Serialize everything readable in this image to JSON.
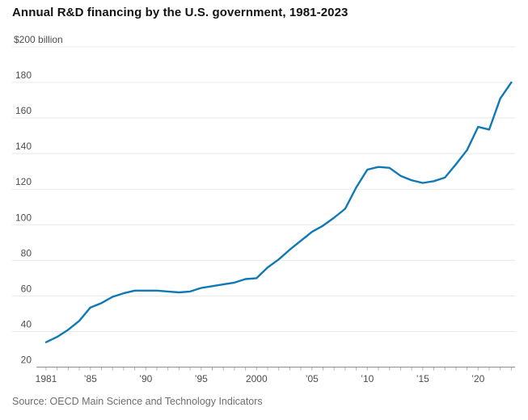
{
  "header": {
    "title": "Annual R&D financing by the U.S. government, 1981-2023"
  },
  "footer": {
    "source": "Source: OECD Main Science and Technology Indicators"
  },
  "colors": {
    "line": "#0f79b5",
    "gridline": "#e8e8e8",
    "axis_line": "#8f8f8f",
    "tick": "#b0b0b0",
    "title_text": "#141414",
    "axis_text": "#4d4d4d",
    "source_text": "#6e6e6e",
    "background": "#ffffff"
  },
  "chart_data": {
    "type": "line",
    "title": "Annual R&D financing by the U.S. government, 1981-2023",
    "unit_label": "$200 billion",
    "xlabel": "",
    "ylabel": "$ billion",
    "ylim": [
      20,
      200
    ],
    "ytick_step": 20,
    "grid": "horizontal",
    "legend": "none",
    "x": [
      1981,
      1982,
      1983,
      1984,
      1985,
      1986,
      1987,
      1988,
      1989,
      1990,
      1991,
      1992,
      1993,
      1994,
      1995,
      1996,
      1997,
      1998,
      1999,
      2000,
      2001,
      2002,
      2003,
      2004,
      2005,
      2006,
      2007,
      2008,
      2009,
      2010,
      2011,
      2012,
      2013,
      2014,
      2015,
      2016,
      2017,
      2018,
      2019,
      2020,
      2021,
      2022,
      2023
    ],
    "values": [
      34,
      37,
      41,
      46,
      53.5,
      56,
      59.5,
      61.5,
      63,
      63,
      63,
      62.5,
      62,
      62.5,
      64.5,
      65.5,
      66.5,
      67.5,
      69.5,
      70,
      76,
      80.5,
      86,
      91,
      96,
      99.5,
      104,
      109,
      121,
      131,
      132.5,
      132,
      127.5,
      125,
      123.5,
      124.5,
      126.5,
      134,
      142,
      155,
      153.5,
      171,
      180
    ],
    "xticks": [
      {
        "year": 1981,
        "label": "1981"
      },
      {
        "year": 1985,
        "label": "’85"
      },
      {
        "year": 1990,
        "label": "’90"
      },
      {
        "year": 1995,
        "label": "’95"
      },
      {
        "year": 2000,
        "label": "2000"
      },
      {
        "year": 2005,
        "label": "’05"
      },
      {
        "year": 2010,
        "label": "’10"
      },
      {
        "year": 2015,
        "label": "’15"
      },
      {
        "year": 2020,
        "label": "’20"
      }
    ]
  }
}
